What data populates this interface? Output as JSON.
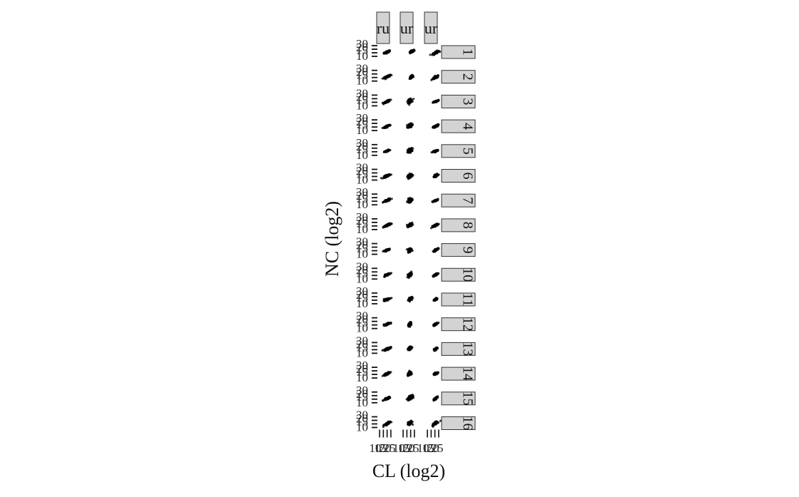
{
  "chart_data": {
    "type": "scatter",
    "title": "",
    "xlabel": "CL (log2)",
    "ylabel": "NC (log2)",
    "x_tick_labels": [
      "10",
      "15",
      "20",
      "25"
    ],
    "y_tick_labels": [
      "10",
      "15",
      "20",
      "30"
    ],
    "xlim": [
      8,
      27
    ],
    "ylim": [
      8,
      32
    ],
    "grid": false,
    "legend": "none",
    "column_strip_labels": [
      "ru",
      "ur",
      "ur"
    ],
    "row_strip_labels": [
      "1",
      "2",
      "3",
      "4",
      "5",
      "6",
      "7",
      "8",
      "9",
      "10",
      "11",
      "12",
      "13",
      "14",
      "15",
      "16"
    ],
    "point_color": "#000000",
    "strip_fill": "#d3d3d3",
    "panel_clusters": [
      [
        {
          "cx": 20,
          "cy": 20,
          "sx": 3.5,
          "sy": 2.0,
          "rho": 0.8
        },
        {
          "cx": 22,
          "cy": 21,
          "sx": 2.5,
          "sy": 2.0,
          "rho": 0.7
        },
        {
          "cx": 21,
          "cy": 19,
          "sx": 3.5,
          "sy": 2.5,
          "rho": 0.8
        }
      ],
      [
        {
          "cx": 20,
          "cy": 20,
          "sx": 3.5,
          "sy": 2.0,
          "rho": 0.8
        },
        {
          "cx": 21,
          "cy": 20,
          "sx": 2.0,
          "sy": 2.0,
          "rho": 0.7
        },
        {
          "cx": 21,
          "cy": 19,
          "sx": 3.5,
          "sy": 2.5,
          "rho": 0.8
        }
      ],
      [
        {
          "cx": 20,
          "cy": 20,
          "sx": 3.5,
          "sy": 2.0,
          "rho": 0.8
        },
        {
          "cx": 19,
          "cy": 21,
          "sx": 2.5,
          "sy": 2.5,
          "rho": 0.4
        },
        {
          "cx": 21,
          "cy": 20,
          "sx": 3.0,
          "sy": 1.5,
          "rho": 0.8
        }
      ],
      [
        {
          "cx": 20,
          "cy": 20,
          "sx": 3.5,
          "sy": 2.0,
          "rho": 0.8
        },
        {
          "cx": 19,
          "cy": 21,
          "sx": 2.5,
          "sy": 2.5,
          "rho": 0.3
        },
        {
          "cx": 21,
          "cy": 20,
          "sx": 3.0,
          "sy": 2.0,
          "rho": 0.8
        }
      ],
      [
        {
          "cx": 20,
          "cy": 20,
          "sx": 3.0,
          "sy": 1.8,
          "rho": 0.8
        },
        {
          "cx": 19,
          "cy": 21,
          "sx": 2.5,
          "sy": 2.5,
          "rho": 0.3
        },
        {
          "cx": 21,
          "cy": 20,
          "sx": 3.0,
          "sy": 1.5,
          "rho": 0.8
        }
      ],
      [
        {
          "cx": 20,
          "cy": 20,
          "sx": 3.5,
          "sy": 2.0,
          "rho": 0.8
        },
        {
          "cx": 19,
          "cy": 20,
          "sx": 2.5,
          "sy": 2.5,
          "rho": 0.3
        },
        {
          "cx": 21,
          "cy": 20,
          "sx": 2.5,
          "sy": 2.0,
          "rho": 0.7
        }
      ],
      [
        {
          "cx": 20,
          "cy": 20,
          "sx": 3.5,
          "sy": 2.0,
          "rho": 0.8
        },
        {
          "cx": 19,
          "cy": 20,
          "sx": 2.5,
          "sy": 2.5,
          "rho": 0.3
        },
        {
          "cx": 21,
          "cy": 20,
          "sx": 2.5,
          "sy": 1.5,
          "rho": 0.8
        }
      ],
      [
        {
          "cx": 20,
          "cy": 20,
          "sx": 3.5,
          "sy": 2.0,
          "rho": 0.8
        },
        {
          "cx": 19,
          "cy": 20,
          "sx": 2.5,
          "sy": 2.5,
          "rho": 0.4
        },
        {
          "cx": 21,
          "cy": 20,
          "sx": 3.0,
          "sy": 2.0,
          "rho": 0.8
        }
      ],
      [
        {
          "cx": 20,
          "cy": 20,
          "sx": 3.5,
          "sy": 2.0,
          "rho": 0.8
        },
        {
          "cx": 19,
          "cy": 20,
          "sx": 2.0,
          "sy": 2.5,
          "rho": 0.4
        },
        {
          "cx": 21,
          "cy": 20,
          "sx": 2.5,
          "sy": 2.0,
          "rho": 0.8
        }
      ],
      [
        {
          "cx": 20,
          "cy": 20,
          "sx": 3.5,
          "sy": 2.0,
          "rho": 0.8
        },
        {
          "cx": 19,
          "cy": 20,
          "sx": 2.0,
          "sy": 2.5,
          "rho": 0.5
        },
        {
          "cx": 21,
          "cy": 20,
          "sx": 2.5,
          "sy": 2.0,
          "rho": 0.8
        }
      ],
      [
        {
          "cx": 20,
          "cy": 20,
          "sx": 3.5,
          "sy": 2.0,
          "rho": 0.8
        },
        {
          "cx": 19,
          "cy": 21,
          "sx": 2.0,
          "sy": 2.5,
          "rho": 0.5
        },
        {
          "cx": 21,
          "cy": 20,
          "sx": 2.0,
          "sy": 1.5,
          "rho": 0.7
        }
      ],
      [
        {
          "cx": 20,
          "cy": 20,
          "sx": 3.5,
          "sy": 2.0,
          "rho": 0.8
        },
        {
          "cx": 19,
          "cy": 20,
          "sx": 1.8,
          "sy": 2.5,
          "rho": 0.5
        },
        {
          "cx": 21,
          "cy": 20,
          "sx": 2.5,
          "sy": 2.0,
          "rho": 0.8
        }
      ],
      [
        {
          "cx": 20,
          "cy": 20,
          "sx": 3.5,
          "sy": 2.0,
          "rho": 0.8
        },
        {
          "cx": 19,
          "cy": 21,
          "sx": 2.0,
          "sy": 2.5,
          "rho": 0.5
        },
        {
          "cx": 21,
          "cy": 20,
          "sx": 2.0,
          "sy": 2.0,
          "rho": 0.8
        }
      ],
      [
        {
          "cx": 20,
          "cy": 20,
          "sx": 3.5,
          "sy": 2.0,
          "rho": 0.8
        },
        {
          "cx": 19,
          "cy": 20,
          "sx": 2.5,
          "sy": 2.5,
          "rho": 0.4
        },
        {
          "cx": 21,
          "cy": 20,
          "sx": 2.5,
          "sy": 2.0,
          "rho": 0.7
        }
      ],
      [
        {
          "cx": 20,
          "cy": 20,
          "sx": 3.5,
          "sy": 2.0,
          "rho": 0.8
        },
        {
          "cx": 19,
          "cy": 21,
          "sx": 2.5,
          "sy": 2.5,
          "rho": 0.5
        },
        {
          "cx": 21,
          "cy": 20,
          "sx": 2.0,
          "sy": 2.0,
          "rho": 0.8
        }
      ],
      [
        {
          "cx": 20,
          "cy": 19,
          "sx": 3.5,
          "sy": 2.5,
          "rho": 0.8
        },
        {
          "cx": 19,
          "cy": 20,
          "sx": 2.5,
          "sy": 2.5,
          "rho": 0.5
        },
        {
          "cx": 21,
          "cy": 20,
          "sx": 2.5,
          "sy": 2.5,
          "rho": 0.7
        }
      ]
    ]
  }
}
